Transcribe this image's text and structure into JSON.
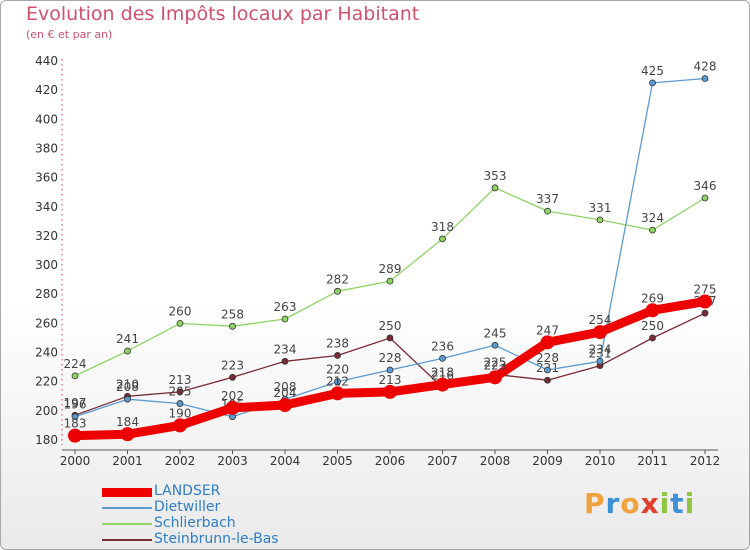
{
  "chart_data": {
    "type": "line",
    "title": "Evolution des Impôts locaux par Habitant",
    "subtitle": "(en € et par an)",
    "x": [
      "2000",
      "2001",
      "2002",
      "2003",
      "2004",
      "2005",
      "2006",
      "2007",
      "2008",
      "2009",
      "2010",
      "2011",
      "2012"
    ],
    "ylim": [
      180,
      440
    ],
    "yticks": [
      180,
      200,
      220,
      240,
      260,
      280,
      300,
      320,
      340,
      360,
      380,
      400,
      420,
      440
    ],
    "grid": false,
    "legend_position": "bottom-left",
    "series": [
      {
        "name": "Steinbrunn-le-Bas",
        "color": "#7a2a35",
        "width": 1.3,
        "marker": 3,
        "values": [
          197,
          210,
          213,
          223,
          234,
          238,
          250,
          216,
          225,
          221,
          231,
          250,
          267
        ],
        "labels": [
          "197",
          "210",
          "213",
          "223",
          "234",
          "238",
          "250",
          "216",
          "225",
          "221",
          "231",
          "250",
          "267"
        ]
      },
      {
        "name": "Schlierbach",
        "color": "#8fd365",
        "width": 1.3,
        "marker": 3,
        "values": [
          224,
          241,
          260,
          258,
          263,
          282,
          289,
          318,
          353,
          337,
          331,
          324,
          346
        ],
        "labels": [
          "224",
          "241",
          "260",
          "258",
          "263",
          "282",
          "289",
          "318",
          "353",
          "337",
          "331",
          "324",
          "346"
        ]
      },
      {
        "name": "Dietwiller",
        "color": "#5b9bd0",
        "width": 1.3,
        "marker": 3,
        "values": [
          196,
          208,
          205,
          196,
          208,
          220,
          228,
          236,
          245,
          228,
          234,
          425,
          428
        ],
        "labels": [
          "196",
          "208",
          "205",
          "196",
          "208",
          "220",
          "228",
          "236",
          "245",
          "228",
          "234",
          "425",
          "428"
        ]
      },
      {
        "name": "LANDSER",
        "color": "#ee0000",
        "width": 9,
        "marker": 7,
        "values": [
          183,
          184,
          190,
          202,
          204,
          212,
          213,
          218,
          223,
          247,
          254,
          269,
          275
        ],
        "labels": [
          "183",
          "184",
          "190",
          "202",
          "204",
          "212",
          "213",
          "218",
          "223",
          "247",
          "254",
          "269",
          "275"
        ]
      }
    ],
    "legend": [
      "LANDSER",
      "Dietwiller",
      "Schlierbach",
      "Steinbrunn-le-Bas"
    ]
  },
  "legend_items": [
    {
      "label": "LANDSER",
      "color": "#ee0000"
    },
    {
      "label": "Dietwiller",
      "color": "#5b9bd0"
    },
    {
      "label": "Schlierbach",
      "color": "#8fd365"
    },
    {
      "label": "Steinbrunn-le-Bas",
      "color": "#7a2a35"
    }
  ],
  "logo": {
    "text": "Proxiti",
    "letters": [
      "P",
      "r",
      "o",
      "x",
      "i",
      "t",
      "i"
    ],
    "colors": [
      "#f0a23c",
      "#3d8fd6",
      "#f0a23c",
      "#e33e2b",
      "#8ec63f",
      "#3d8fd6",
      "#8ec63f"
    ]
  }
}
